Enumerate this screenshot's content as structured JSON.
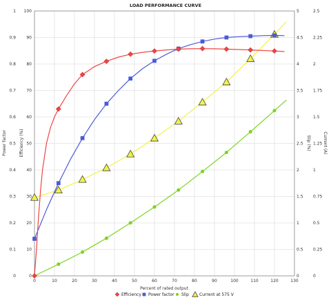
{
  "chart_data": {
    "type": "line",
    "title": "LOAD PERFORMANCE CURVE",
    "xlabel": "Percent of rated output",
    "xlim": [
      0,
      130
    ],
    "xticks": [
      0,
      10,
      20,
      30,
      40,
      50,
      60,
      70,
      80,
      90,
      100,
      110,
      120,
      130
    ],
    "grid": true,
    "axes": {
      "left_outer": {
        "label": "Power factor",
        "lim": [
          0,
          1
        ],
        "ticks": [
          "0",
          "0.1",
          "0.2",
          "0.3",
          "0.4",
          "0.5",
          "0.6",
          "0.7",
          "0.8",
          "0.9",
          "1"
        ]
      },
      "left_inner": {
        "label": "Efficiency (%)",
        "lim": [
          0,
          100
        ],
        "ticks": [
          "0",
          "10",
          "20",
          "30",
          "40",
          "50",
          "60",
          "70",
          "80",
          "90",
          "100"
        ]
      },
      "right_inner": {
        "label": "Slip (%)",
        "lim": [
          0,
          5
        ],
        "ticks": [
          "0",
          "0.5",
          "1",
          "1.5",
          "2",
          "2.5",
          "3",
          "3.5",
          "4",
          "4.5",
          "5"
        ]
      },
      "right_outer": {
        "label": "Current (A)",
        "lim": [
          0,
          2.5
        ],
        "ticks": [
          "0",
          "0.25",
          "0.5",
          "0.75",
          "1",
          "1.25",
          "1.5",
          "1.75",
          "2",
          "2.25",
          "2.5"
        ]
      }
    },
    "legend_position": "bottom",
    "series": [
      {
        "name": "Efficiency",
        "axis": "left_inner",
        "color": "#ef4444",
        "marker": "diamond",
        "markers": [
          [
            0,
            0
          ],
          [
            12,
            63
          ],
          [
            24,
            76
          ],
          [
            36,
            81
          ],
          [
            48,
            83.7
          ],
          [
            60,
            84.9
          ],
          [
            72,
            85.6
          ],
          [
            84,
            85.8
          ],
          [
            96,
            85.6
          ],
          [
            108,
            85.3
          ],
          [
            120,
            84.9
          ]
        ],
        "curve": [
          [
            0,
            0
          ],
          [
            1,
            10
          ],
          [
            2,
            22
          ],
          [
            3,
            32
          ],
          [
            4,
            40
          ],
          [
            6,
            50
          ],
          [
            8,
            56
          ],
          [
            10,
            60
          ],
          [
            12,
            63
          ],
          [
            16,
            68
          ],
          [
            20,
            72.5
          ],
          [
            24,
            76
          ],
          [
            30,
            79
          ],
          [
            36,
            81
          ],
          [
            42,
            82.6
          ],
          [
            48,
            83.7
          ],
          [
            54,
            84.4
          ],
          [
            60,
            84.9
          ],
          [
            66,
            85.3
          ],
          [
            72,
            85.6
          ],
          [
            78,
            85.75
          ],
          [
            84,
            85.8
          ],
          [
            90,
            85.75
          ],
          [
            96,
            85.6
          ],
          [
            102,
            85.45
          ],
          [
            108,
            85.3
          ],
          [
            114,
            85.1
          ],
          [
            120,
            84.9
          ],
          [
            125,
            84.7
          ]
        ]
      },
      {
        "name": "Power factor",
        "axis": "left_outer",
        "color": "#4b5bd6",
        "marker": "square",
        "markers": [
          [
            0,
            0.14
          ],
          [
            12,
            0.35
          ],
          [
            24,
            0.52
          ],
          [
            36,
            0.65
          ],
          [
            48,
            0.745
          ],
          [
            60,
            0.812
          ],
          [
            72,
            0.858
          ],
          [
            84,
            0.885
          ],
          [
            96,
            0.9
          ],
          [
            108,
            0.905
          ],
          [
            120,
            0.908
          ]
        ],
        "curve": [
          [
            0,
            0.14
          ],
          [
            6,
            0.25
          ],
          [
            12,
            0.35
          ],
          [
            18,
            0.44
          ],
          [
            24,
            0.52
          ],
          [
            30,
            0.59
          ],
          [
            36,
            0.65
          ],
          [
            42,
            0.7
          ],
          [
            48,
            0.745
          ],
          [
            54,
            0.782
          ],
          [
            60,
            0.812
          ],
          [
            66,
            0.837
          ],
          [
            72,
            0.858
          ],
          [
            78,
            0.873
          ],
          [
            84,
            0.885
          ],
          [
            90,
            0.894
          ],
          [
            96,
            0.9
          ],
          [
            102,
            0.903
          ],
          [
            108,
            0.905
          ],
          [
            114,
            0.907
          ],
          [
            120,
            0.908
          ],
          [
            125,
            0.907
          ]
        ]
      },
      {
        "name": "Slip",
        "axis": "right_inner",
        "color": "#7ed321",
        "marker": "circle",
        "markers": [
          [
            0,
            0
          ],
          [
            12,
            0.22
          ],
          [
            24,
            0.45
          ],
          [
            36,
            0.71
          ],
          [
            48,
            1.0
          ],
          [
            60,
            1.3
          ],
          [
            72,
            1.62
          ],
          [
            84,
            1.97
          ],
          [
            96,
            2.33
          ],
          [
            108,
            2.72
          ],
          [
            120,
            3.12
          ]
        ],
        "curve": [
          [
            0,
            0
          ],
          [
            12,
            0.22
          ],
          [
            24,
            0.45
          ],
          [
            36,
            0.71
          ],
          [
            48,
            1.0
          ],
          [
            60,
            1.3
          ],
          [
            72,
            1.62
          ],
          [
            84,
            1.97
          ],
          [
            96,
            2.33
          ],
          [
            108,
            2.72
          ],
          [
            120,
            3.12
          ],
          [
            126,
            3.32
          ]
        ]
      },
      {
        "name": "Current at 575 V",
        "axis": "right_outer",
        "color": "#f2f24a",
        "marker": "triangle",
        "markers": [
          [
            0,
            0.74
          ],
          [
            12,
            0.81
          ],
          [
            24,
            0.91
          ],
          [
            36,
            1.02
          ],
          [
            48,
            1.15
          ],
          [
            60,
            1.3
          ],
          [
            72,
            1.46
          ],
          [
            84,
            1.64
          ],
          [
            96,
            1.83
          ],
          [
            108,
            2.05
          ],
          [
            120,
            2.28
          ]
        ],
        "curve": [
          [
            0,
            0.74
          ],
          [
            12,
            0.81
          ],
          [
            24,
            0.91
          ],
          [
            36,
            1.02
          ],
          [
            48,
            1.15
          ],
          [
            60,
            1.3
          ],
          [
            72,
            1.46
          ],
          [
            84,
            1.64
          ],
          [
            96,
            1.83
          ],
          [
            108,
            2.05
          ],
          [
            120,
            2.28
          ],
          [
            126,
            2.4
          ]
        ]
      }
    ]
  }
}
